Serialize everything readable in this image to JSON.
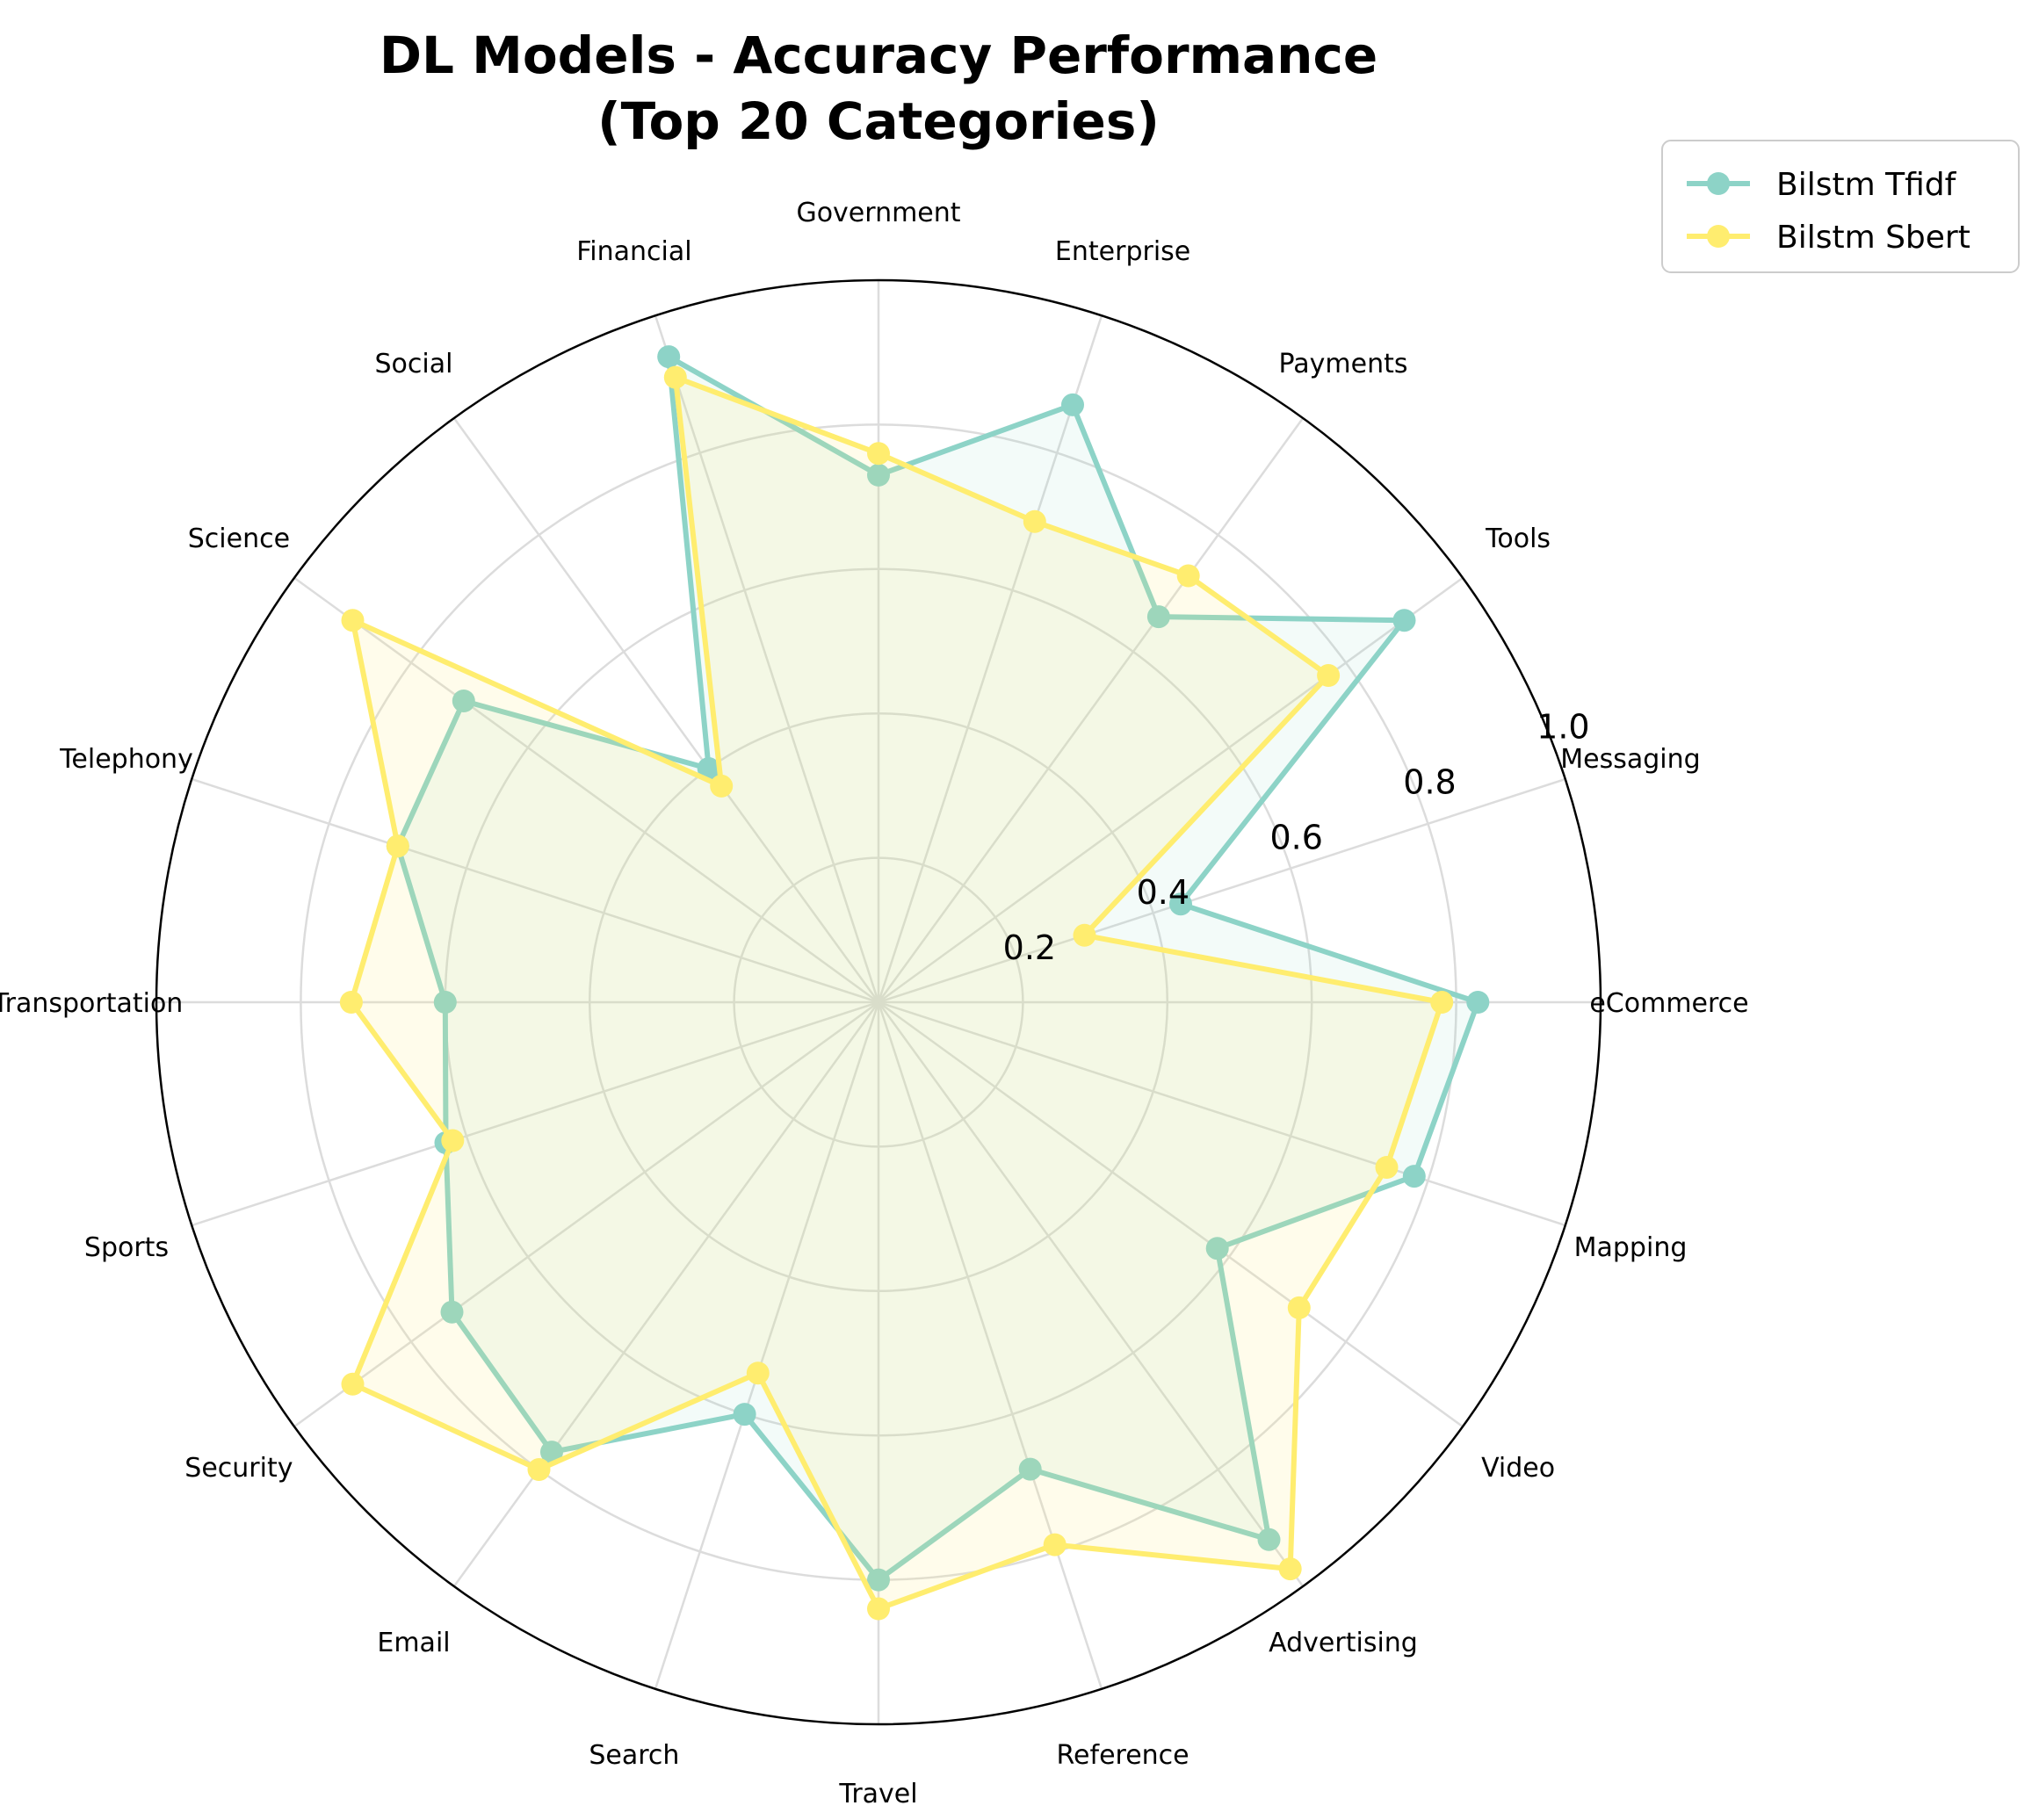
{
  "chart_data": {
    "type": "radar",
    "title_lines": [
      "DL Models - Accuracy Performance",
      "(Top 20 Categories)"
    ],
    "categories": [
      "eCommerce",
      "Messaging",
      "Tools",
      "Payments",
      "Enterprise",
      "Government",
      "Financial",
      "Social",
      "Science",
      "Telephony",
      "Transportation",
      "Sports",
      "Security",
      "Email",
      "Search",
      "Travel",
      "Reference",
      "Advertising",
      "Video",
      "Mapping"
    ],
    "rlim": [
      0,
      1.0
    ],
    "rticks": [
      0.2,
      0.4,
      0.6,
      0.8,
      1.0
    ],
    "rtick_labels": [
      "0.2",
      "0.4",
      "0.6",
      "0.8",
      "1.0"
    ],
    "grid": true,
    "legend_position": "top-right",
    "series": [
      {
        "name": "Bilstm Tfidf",
        "color": "#8dd3c7",
        "values": [
          0.83,
          0.44,
          0.9,
          0.66,
          0.87,
          0.73,
          0.94,
          0.4,
          0.71,
          0.7,
          0.6,
          0.63,
          0.73,
          0.77,
          0.6,
          0.8,
          0.68,
          0.92,
          0.58,
          0.78
        ]
      },
      {
        "name": "Bilstm Sbert",
        "color": "#ffed6f",
        "values": [
          0.78,
          0.3,
          0.77,
          0.73,
          0.7,
          0.76,
          0.91,
          0.37,
          0.9,
          0.7,
          0.73,
          0.62,
          0.9,
          0.8,
          0.54,
          0.84,
          0.79,
          0.97,
          0.72,
          0.74
        ]
      }
    ]
  }
}
